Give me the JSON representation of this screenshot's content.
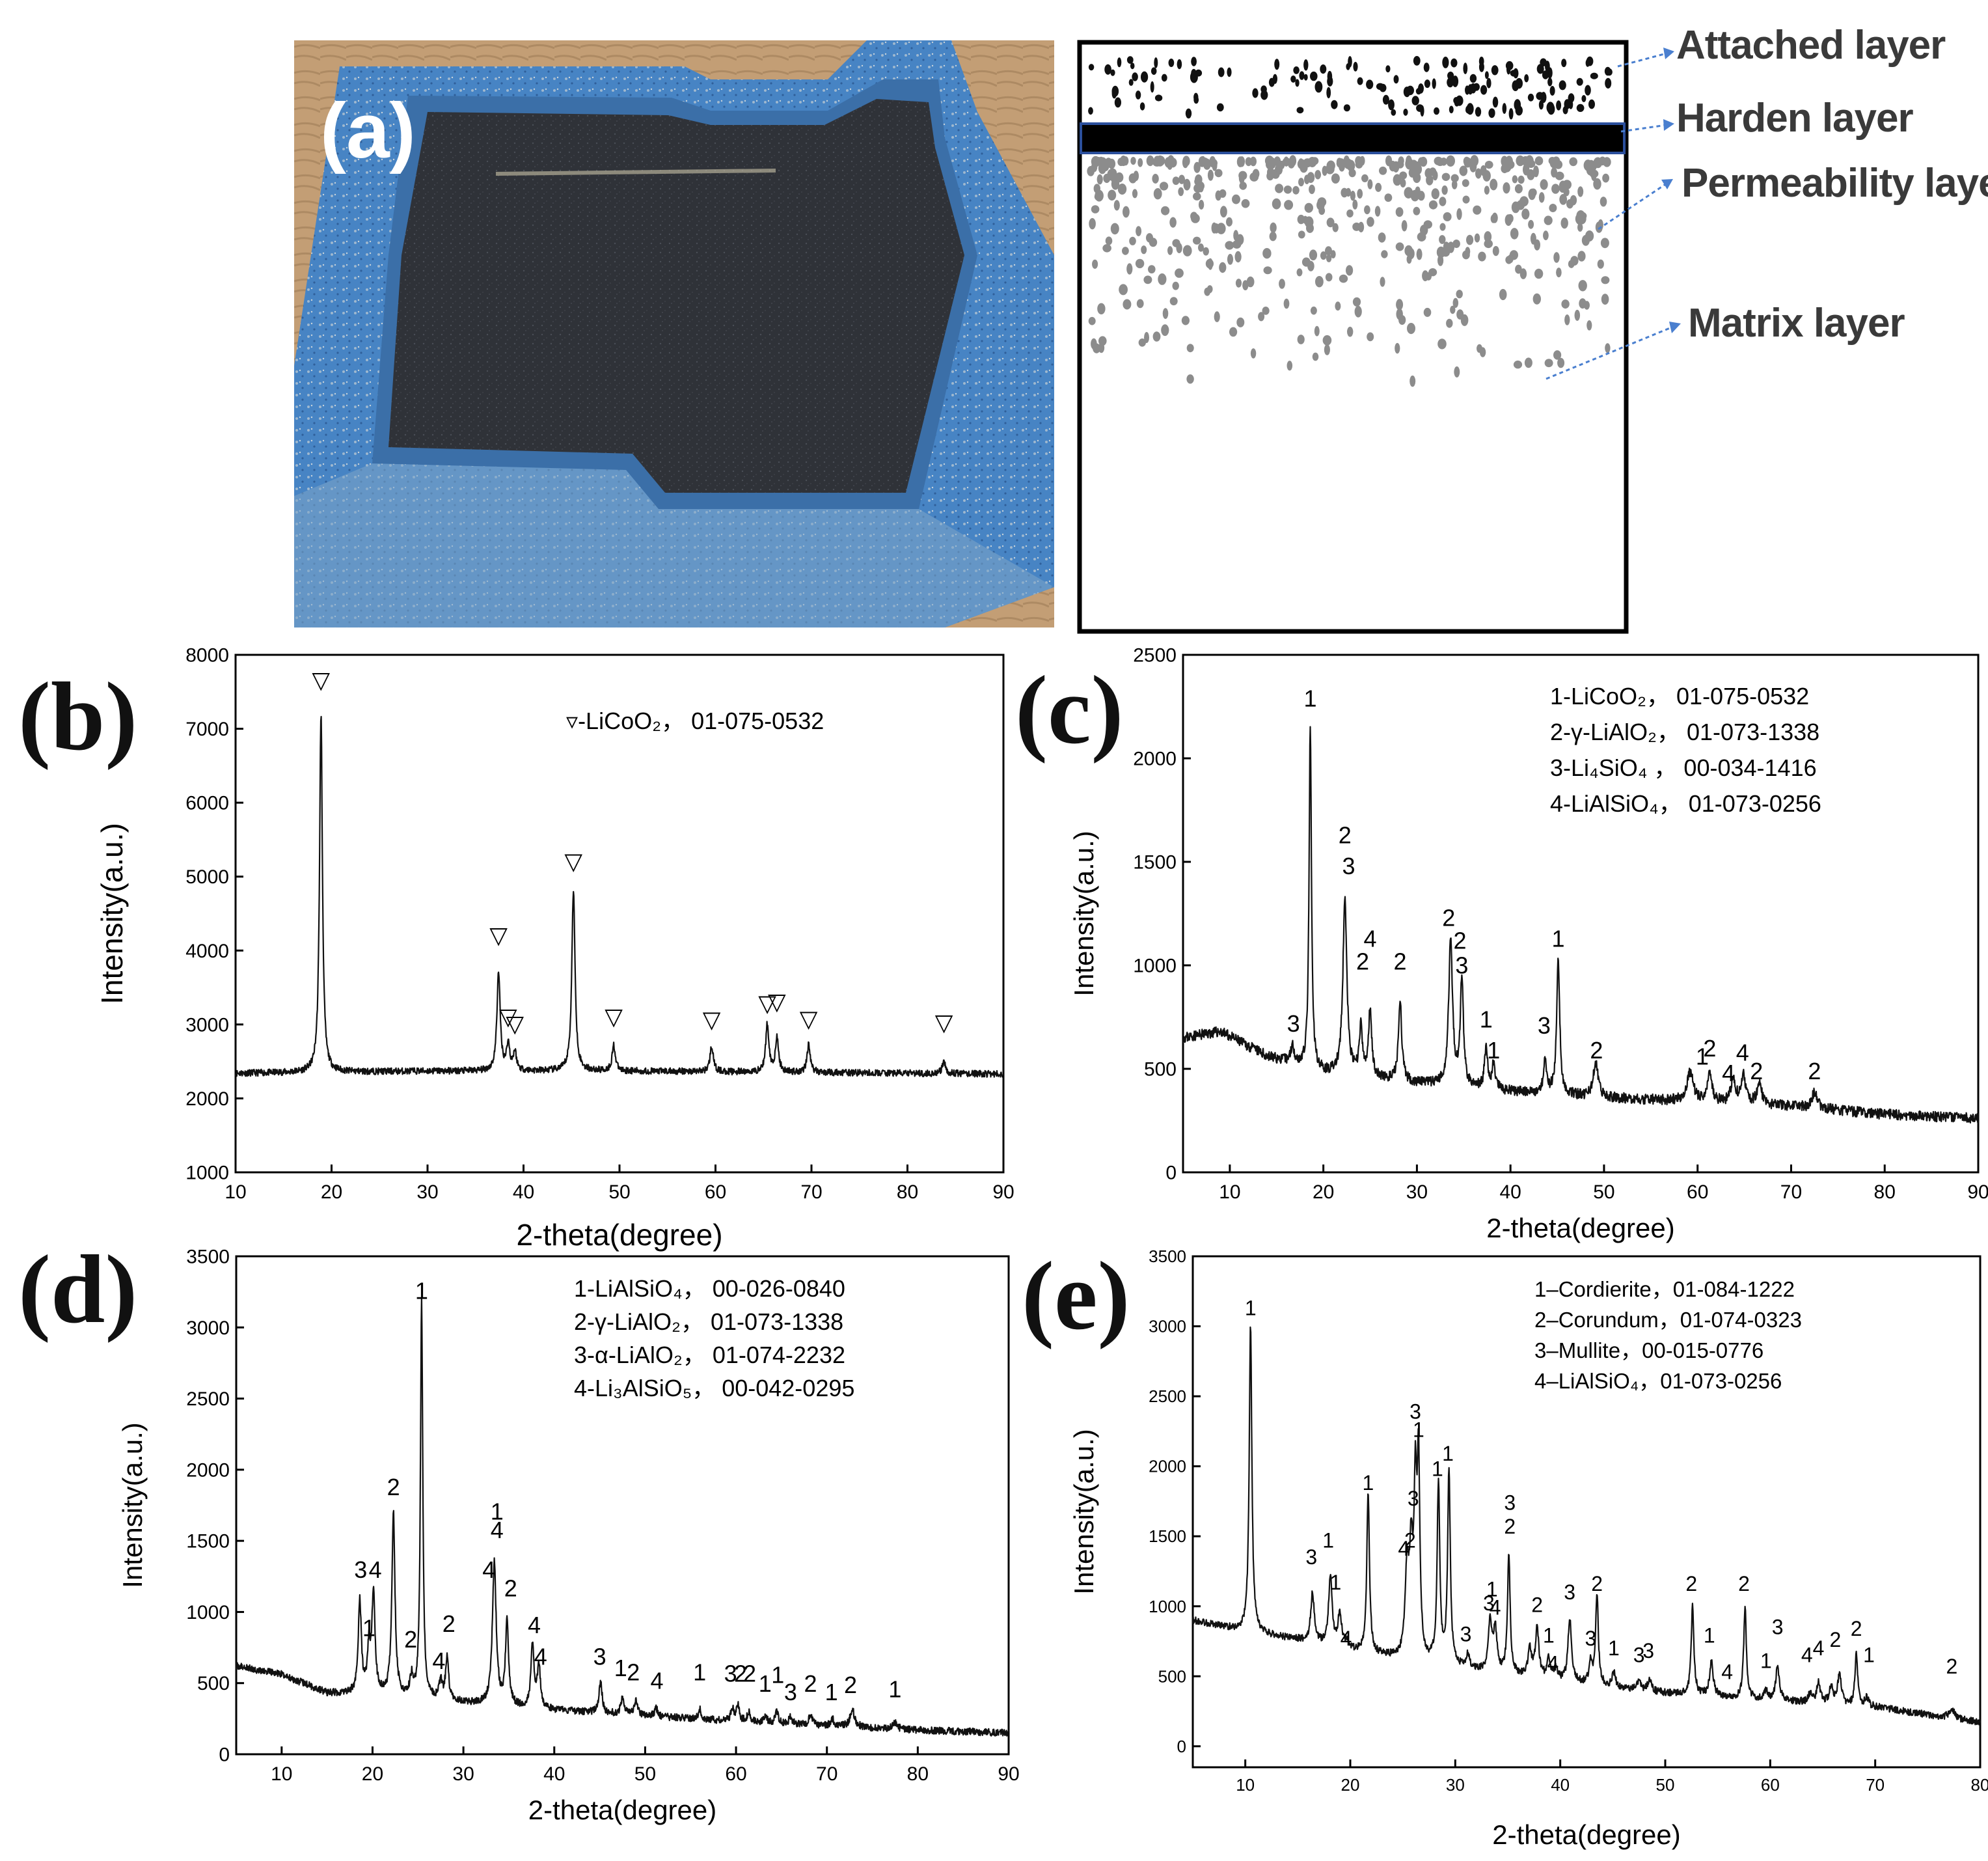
{
  "panel_a": {
    "label": "(a)",
    "layers": [
      "Attached layer",
      "Harden layer",
      "Permeability layer",
      "Matrix layer"
    ]
  },
  "colors": {
    "trace": "#111111",
    "leader_arrow": "#4a7fcf",
    "tray_blue": "#3f7fc1",
    "tray_inner": "#2e3036",
    "harden_border": "#2b4f9c",
    "grey_dots": "#8c8c8c"
  },
  "chart_data": [
    {
      "panel": "(b)",
      "type": "line",
      "xlabel": "2-theta(degree)",
      "ylabel": "Intensity(a.u.)",
      "xlim": [
        10,
        90
      ],
      "ylim": [
        1000,
        8000
      ],
      "xticks": [
        10,
        20,
        30,
        40,
        50,
        60,
        70,
        80,
        90
      ],
      "yticks": [
        1000,
        2000,
        3000,
        4000,
        5000,
        6000,
        7000,
        8000
      ],
      "legend": [
        "▿-LiCoO₂， 01-075-0532"
      ],
      "baseline": [
        [
          10,
          2340
        ],
        [
          30,
          2370
        ],
        [
          50,
          2370
        ],
        [
          70,
          2350
        ],
        [
          90,
          2330
        ]
      ],
      "noise": 45,
      "peaks": [
        [
          18.9,
          4850,
          0.18
        ],
        [
          37.4,
          1350,
          0.2
        ],
        [
          38.4,
          350,
          0.2
        ],
        [
          39.1,
          250,
          0.2
        ],
        [
          45.2,
          2450,
          0.2
        ],
        [
          49.4,
          350,
          0.2
        ],
        [
          59.6,
          350,
          0.2
        ],
        [
          65.4,
          650,
          0.2
        ],
        [
          66.4,
          450,
          0.2
        ],
        [
          69.7,
          380,
          0.2
        ],
        [
          83.8,
          150,
          0.2
        ]
      ],
      "annotations": [
        [
          "▽",
          18.9,
          7550
        ],
        [
          "▽",
          37.4,
          4100
        ],
        [
          "▽",
          38.4,
          3000
        ],
        [
          "▽",
          39.1,
          2900
        ],
        [
          "▽",
          45.2,
          5100
        ],
        [
          "▽",
          49.4,
          3000
        ],
        [
          "▽",
          59.6,
          2960
        ],
        [
          "▽",
          65.4,
          3180
        ],
        [
          "▽",
          66.4,
          3200
        ],
        [
          "▽",
          69.7,
          2970
        ],
        [
          "▽",
          83.8,
          2920
        ]
      ]
    },
    {
      "panel": "(c)",
      "type": "line",
      "xlabel": "2-theta(degree)",
      "ylabel": "Intensity(a.u.)",
      "xlim": [
        5,
        90
      ],
      "ylim": [
        0,
        2500
      ],
      "xticks": [
        10,
        20,
        30,
        40,
        50,
        60,
        70,
        80,
        90
      ],
      "yticks": [
        0,
        500,
        1000,
        1500,
        2000,
        2500
      ],
      "legend": [
        "1-LiCoO₂， 01-075-0532",
        "2-γ-LiAlO₂， 01-073-1338",
        "3-Li₄SiO₄ ， 00-034-1416",
        "4-LiAlSiO₄， 01-073-0256"
      ],
      "baseline": [
        [
          5,
          650
        ],
        [
          9,
          680
        ],
        [
          14,
          560
        ],
        [
          20,
          480
        ],
        [
          30,
          430
        ],
        [
          40,
          390
        ],
        [
          50,
          360
        ],
        [
          60,
          340
        ],
        [
          70,
          320
        ],
        [
          80,
          280
        ],
        [
          90,
          260
        ]
      ],
      "noise": 25,
      "peaks": [
        [
          16.7,
          80,
          0.25
        ],
        [
          18.6,
          1650,
          0.15
        ],
        [
          22.3,
          850,
          0.25
        ],
        [
          24.0,
          230,
          0.2
        ],
        [
          25.0,
          330,
          0.2
        ],
        [
          28.2,
          400,
          0.2
        ],
        [
          33.6,
          700,
          0.25
        ],
        [
          34.8,
          520,
          0.2
        ],
        [
          37.4,
          200,
          0.2
        ],
        [
          38.2,
          120,
          0.2
        ],
        [
          43.7,
          170,
          0.2
        ],
        [
          45.1,
          640,
          0.2
        ],
        [
          49.1,
          170,
          0.3
        ],
        [
          59.2,
          140,
          0.4
        ],
        [
          61.3,
          130,
          0.3
        ],
        [
          63.8,
          110,
          0.3
        ],
        [
          64.9,
          130,
          0.3
        ],
        [
          66.6,
          100,
          0.3
        ],
        [
          72.5,
          80,
          0.3
        ]
      ],
      "annotations": [
        [
          "1",
          18.6,
          2250
        ],
        [
          "2",
          22.3,
          1590
        ],
        [
          "3",
          22.7,
          1440
        ],
        [
          "4",
          25.0,
          1090
        ],
        [
          "2",
          24.2,
          980
        ],
        [
          "2",
          28.2,
          980
        ],
        [
          "2",
          33.4,
          1190
        ],
        [
          "2",
          34.6,
          1080
        ],
        [
          "3",
          34.8,
          960
        ],
        [
          "1",
          37.4,
          700
        ],
        [
          "1",
          38.2,
          550
        ],
        [
          "3",
          43.6,
          670
        ],
        [
          "1",
          45.1,
          1090
        ],
        [
          "2",
          49.2,
          550
        ],
        [
          "3",
          16.8,
          680
        ],
        [
          "1",
          60.5,
          520
        ],
        [
          "2",
          61.3,
          560
        ],
        [
          "4",
          63.3,
          440
        ],
        [
          "4",
          64.8,
          540
        ],
        [
          "2",
          66.3,
          450
        ],
        [
          "2",
          72.5,
          450
        ]
      ]
    },
    {
      "panel": "(d)",
      "type": "line",
      "xlabel": "2-theta(degree)",
      "ylabel": "Intensity(a.u.)",
      "xlim": [
        5,
        90
      ],
      "ylim": [
        0,
        3500
      ],
      "xticks": [
        10,
        20,
        30,
        40,
        50,
        60,
        70,
        80,
        90
      ],
      "yticks": [
        0,
        500,
        1000,
        1500,
        2000,
        2500,
        3000,
        3500
      ],
      "legend": [
        "1-LiAlSiO₄， 00-026-0840",
        "2-γ-LiAlO₂， 01-073-1338",
        "3-α-LiAlO₂， 01-074-2232",
        "4-Li₃AlSiO₅， 00-042-0295"
      ],
      "baseline": [
        [
          5,
          620
        ],
        [
          10,
          560
        ],
        [
          15,
          430
        ],
        [
          20,
          420
        ],
        [
          30,
          360
        ],
        [
          40,
          310
        ],
        [
          50,
          270
        ],
        [
          60,
          230
        ],
        [
          70,
          200
        ],
        [
          80,
          170
        ],
        [
          90,
          150
        ]
      ],
      "noise": 25,
      "peaks": [
        [
          18.6,
          650,
          0.2
        ],
        [
          19.6,
          300,
          0.2
        ],
        [
          20.1,
          700,
          0.2
        ],
        [
          22.3,
          1300,
          0.2
        ],
        [
          24.3,
          130,
          0.2
        ],
        [
          25.4,
          2800,
          0.15
        ],
        [
          27.5,
          130,
          0.2
        ],
        [
          28.2,
          300,
          0.2
        ],
        [
          33.4,
          1000,
          0.25
        ],
        [
          34.8,
          600,
          0.2
        ],
        [
          37.6,
          450,
          0.2
        ],
        [
          38.3,
          300,
          0.2
        ],
        [
          45.1,
          220,
          0.2
        ],
        [
          47.5,
          120,
          0.2
        ],
        [
          49.0,
          100,
          0.2
        ],
        [
          51.2,
          60,
          0.2
        ],
        [
          56.0,
          70,
          0.2
        ],
        [
          59.6,
          90,
          0.2
        ],
        [
          60.2,
          110,
          0.2
        ],
        [
          61.4,
          70,
          0.2
        ],
        [
          63.2,
          50,
          0.2
        ],
        [
          64.5,
          80,
          0.2
        ],
        [
          66.0,
          50,
          0.2
        ],
        [
          68.2,
          80,
          0.2
        ],
        [
          70.6,
          50,
          0.2
        ],
        [
          72.8,
          120,
          0.3
        ],
        [
          77.5,
          40,
          0.3
        ]
      ],
      "annotations": [
        [
          "1",
          25.4,
          3200
        ],
        [
          "2",
          22.3,
          1820
        ],
        [
          "3",
          18.7,
          1240
        ],
        [
          "4",
          20.3,
          1240
        ],
        [
          "1",
          19.6,
          830
        ],
        [
          "2",
          24.2,
          750
        ],
        [
          "4",
          27.3,
          600
        ],
        [
          "2",
          28.4,
          860
        ],
        [
          "1",
          33.7,
          1650
        ],
        [
          "4",
          33.7,
          1520
        ],
        [
          "4",
          32.8,
          1240
        ],
        [
          "2",
          35.2,
          1110
        ],
        [
          "4",
          37.8,
          850
        ],
        [
          "4",
          38.5,
          630
        ],
        [
          "3",
          45.0,
          630
        ],
        [
          "1",
          47.3,
          550
        ],
        [
          "2",
          48.7,
          520
        ],
        [
          "4",
          51.3,
          460
        ],
        [
          "1",
          56.0,
          520
        ],
        [
          "3",
          59.4,
          510
        ],
        [
          "2",
          60.5,
          510
        ],
        [
          "2",
          61.5,
          510
        ],
        [
          "1",
          63.2,
          440
        ],
        [
          "1",
          64.6,
          500
        ],
        [
          "3",
          66.0,
          380
        ],
        [
          "2",
          68.2,
          440
        ],
        [
          "1",
          70.5,
          380
        ],
        [
          "2",
          72.6,
          430
        ],
        [
          "1",
          77.5,
          400
        ]
      ]
    },
    {
      "panel": "(e)",
      "type": "line",
      "xlabel": "2-theta(degree)",
      "ylabel": "Intensity(a.u.)",
      "xlim": [
        5,
        80
      ],
      "ylim": [
        -150,
        3500
      ],
      "xticks": [
        10,
        20,
        30,
        40,
        50,
        60,
        70,
        80
      ],
      "yticks": [
        0,
        500,
        1000,
        1500,
        2000,
        2500,
        3000,
        3500
      ],
      "legend": [
        "1–Cordierite，01-084-1222",
        "2–Corundum，01-074-0323",
        "3–Mullite，00-015-0776",
        "4–LiAlSiO₄，01-073-0256"
      ],
      "baseline": [
        [
          5,
          900
        ],
        [
          10,
          820
        ],
        [
          15,
          760
        ],
        [
          20,
          680
        ],
        [
          30,
          560
        ],
        [
          40,
          460
        ],
        [
          50,
          380
        ],
        [
          60,
          330
        ],
        [
          70,
          280
        ],
        [
          80,
          170
        ]
      ],
      "noise": 25,
      "peaks": [
        [
          10.5,
          2200,
          0.15
        ],
        [
          16.4,
          350,
          0.2
        ],
        [
          18.1,
          500,
          0.2
        ],
        [
          19.0,
          250,
          0.2
        ],
        [
          19.7,
          60,
          0.2
        ],
        [
          21.7,
          1150,
          0.15
        ],
        [
          25.4,
          600,
          0.2
        ],
        [
          25.8,
          700,
          0.2
        ],
        [
          26.2,
          1100,
          0.15
        ],
        [
          26.5,
          1350,
          0.15
        ],
        [
          28.4,
          1300,
          0.15
        ],
        [
          29.4,
          1400,
          0.15
        ],
        [
          31.2,
          100,
          0.2
        ],
        [
          33.3,
          350,
          0.2
        ],
        [
          33.8,
          300,
          0.2
        ],
        [
          35.1,
          850,
          0.15
        ],
        [
          37.1,
          200,
          0.2
        ],
        [
          37.8,
          350,
          0.2
        ],
        [
          38.9,
          150,
          0.2
        ],
        [
          39.6,
          80,
          0.2
        ],
        [
          40.9,
          450,
          0.2
        ],
        [
          42.9,
          150,
          0.2
        ],
        [
          43.5,
          650,
          0.15
        ],
        [
          45.1,
          100,
          0.2
        ],
        [
          47.5,
          60,
          0.2
        ],
        [
          48.5,
          80,
          0.2
        ],
        [
          52.6,
          650,
          0.15
        ],
        [
          54.4,
          250,
          0.2
        ],
        [
          57.6,
          650,
          0.15
        ],
        [
          59.6,
          60,
          0.2
        ],
        [
          60.7,
          250,
          0.2
        ],
        [
          63.8,
          60,
          0.2
        ],
        [
          64.6,
          150,
          0.2
        ],
        [
          65.8,
          120,
          0.2
        ],
        [
          66.6,
          220,
          0.2
        ],
        [
          68.2,
          380,
          0.15
        ],
        [
          69.2,
          60,
          0.2
        ],
        [
          77.3,
          70,
          0.3
        ]
      ],
      "annotations": [
        [
          "1",
          10.5,
          3080
        ],
        [
          "3",
          16.3,
          1300
        ],
        [
          "1",
          17.9,
          1420
        ],
        [
          "1",
          18.6,
          1120
        ],
        [
          "4",
          19.6,
          720
        ],
        [
          "1",
          21.7,
          1830
        ],
        [
          "4",
          25.1,
          1360
        ],
        [
          "2",
          25.7,
          1420
        ],
        [
          "3",
          26.0,
          1720
        ],
        [
          "3",
          26.2,
          2340
        ],
        [
          "1",
          26.5,
          2210
        ],
        [
          "1",
          28.3,
          1930
        ],
        [
          "1",
          29.3,
          2040
        ],
        [
          "3",
          31.0,
          750
        ],
        [
          "3",
          35.2,
          1690
        ],
        [
          "2",
          35.2,
          1520
        ],
        [
          "1",
          33.5,
          1070
        ],
        [
          "3",
          33.2,
          970
        ],
        [
          "4",
          33.8,
          940
        ],
        [
          "2",
          37.8,
          960
        ],
        [
          "1",
          38.9,
          740
        ],
        [
          "4",
          39.3,
          540
        ],
        [
          "3",
          40.9,
          1050
        ],
        [
          "2",
          43.5,
          1110
        ],
        [
          "3",
          42.9,
          720
        ],
        [
          "1",
          45.1,
          650
        ],
        [
          "3",
          47.5,
          600
        ],
        [
          "3",
          48.4,
          630
        ],
        [
          "2",
          52.5,
          1110
        ],
        [
          "1",
          54.2,
          740
        ],
        [
          "4",
          55.9,
          480
        ],
        [
          "2",
          57.5,
          1110
        ],
        [
          "1",
          59.6,
          560
        ],
        [
          "3",
          60.7,
          800
        ],
        [
          "4",
          63.5,
          600
        ],
        [
          "4",
          64.6,
          650
        ],
        [
          "2",
          66.2,
          710
        ],
        [
          "2",
          68.2,
          790
        ],
        [
          "1",
          69.4,
          600
        ],
        [
          "2",
          77.3,
          520
        ]
      ]
    }
  ]
}
